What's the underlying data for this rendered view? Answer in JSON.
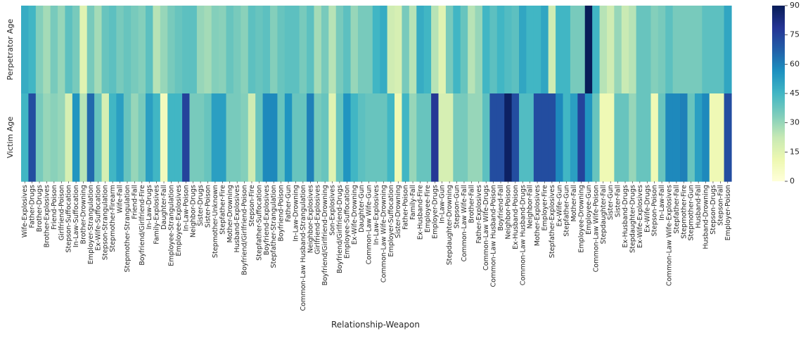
{
  "chart_data": {
    "type": "heatmap",
    "title": "",
    "xlabel": "Relationship-Weapon",
    "ylabel": "",
    "rows": [
      "Perpetrator Age",
      "Victim Age"
    ],
    "columns": [
      "Wife-Explosives",
      "Father-Drugs",
      "Brother-Drugs",
      "Brother-Explosives",
      "Friend-Poison",
      "Girlfriend-Poison",
      "Stepson-Suffocation",
      "In-Law-Suffocation",
      "Brother-Drowning",
      "Employer-Strangulation",
      "Ex-Wife-Suffocation",
      "Stepson-Strangulation",
      "Stepmother-Firearm",
      "Wife-Fall",
      "Stepmother-Strangulation",
      "Friend-Fall",
      "Boyfriend/Girlfriend-Fire",
      "In-Law-Drugs",
      "Family-Explosives",
      "Daughter-Fall",
      "Employee-Strangulation",
      "Employee-Explosives",
      "In-Law-Poison",
      "Neighbor-Drugs",
      "Sister-Drugs",
      "Sister-Poison",
      "Stepmother-Unknown",
      "Stepfather-Fire",
      "Mother-Drowning",
      "Husband-Explosives",
      "Boyfriend/Girlfriend-Poison",
      "Stepson-Fire",
      "Stepfather-Suffocation",
      "Boyfriend-Explosives",
      "Stepfather-Strangulation",
      "Boyfriend-Poison",
      "Father-Gun",
      "In-Law-Drowning",
      "Common-Law Husband-Strangulation",
      "Neighbor-Explosives",
      "Girlfriend-Explosives",
      "Boyfriend/Girlfriend-Drowning",
      "Son-Explosives",
      "Boyfriend/Girlfriend-Drugs",
      "Employee-Suffocation",
      "Ex-Wife-Drowning",
      "Daughter-Gun",
      "Common-Law Wife-Gun",
      "In-Law-Explosives",
      "Common-Law Wife-Drowning",
      "Employer-Suffocation",
      "Sister-Drowning",
      "Father-Poison",
      "Family-Fall",
      "Ex-Husband-Fire",
      "Employee-Fire",
      "Employer-Drugs",
      "In-Law-Gun",
      "Stepdaughter-Drowning",
      "Stepson-Gun",
      "Common-Law Wife-Fall",
      "Brother-Fall",
      "Father-Explosives",
      "Common-Law Wife-Drugs",
      "Common-Law Husband-Poison",
      "Boyfriend-Fall",
      "Neighbor-Poison",
      "Ex-Husband-Poison",
      "Common-Law Husband-Drugs",
      "Neighbor-Fall",
      "Mother-Explosives",
      "Employer-Fire",
      "Stepfather-Explosives",
      "Ex-Wife-Gun",
      "Stepfather-Gun",
      "Mother-Fall",
      "Employee-Drowning",
      "Employee-Gun",
      "Common-Law Wife-Poison",
      "Stepdaughter-Fall",
      "Sister-Gun",
      "Sister-Fall",
      "Ex-Husband-Drugs",
      "Stepdaughter-Drugs",
      "Ex-Wife-Explosives",
      "Ex-Wife-Drugs",
      "Stepson-Poison",
      "In-Law-Fall",
      "Common-Law Wife-Explosives",
      "Stepfather-Fall",
      "Stepmother-Fire",
      "Stepmother-Gun",
      "Husband-Fall",
      "Husband-Drowning",
      "Stepson-Drugs",
      "Stepson-Fall",
      "Employer-Poison"
    ],
    "values": [
      [
        48,
        45,
        33,
        28,
        35,
        30,
        40,
        35,
        15,
        35,
        28,
        38,
        40,
        35,
        38,
        35,
        33,
        40,
        25,
        30,
        35,
        38,
        40,
        40,
        30,
        28,
        33,
        32,
        38,
        35,
        32,
        40,
        38,
        40,
        33,
        38,
        40,
        40,
        35,
        40,
        28,
        35,
        25,
        35,
        40,
        30,
        35,
        35,
        45,
        48,
        20,
        18,
        35,
        25,
        48,
        45,
        25,
        15,
        35,
        45,
        38,
        25,
        30,
        45,
        40,
        45,
        42,
        40,
        50,
        45,
        45,
        50,
        20,
        45,
        45,
        35,
        35,
        90,
        45,
        25,
        20,
        30,
        22,
        25,
        38,
        38,
        33,
        35,
        40,
        35,
        35,
        35,
        35,
        40,
        40,
        40,
        50
      ],
      [
        45,
        72,
        35,
        30,
        32,
        30,
        18,
        55,
        25,
        65,
        38,
        18,
        45,
        52,
        38,
        30,
        35,
        52,
        45,
        8,
        45,
        45,
        75,
        35,
        35,
        38,
        52,
        52,
        35,
        35,
        33,
        20,
        38,
        58,
        58,
        38,
        55,
        38,
        38,
        60,
        35,
        38,
        15,
        38,
        55,
        45,
        40,
        38,
        38,
        38,
        45,
        10,
        45,
        30,
        38,
        38,
        78,
        18,
        18,
        35,
        35,
        30,
        30,
        40,
        72,
        72,
        88,
        72,
        42,
        42,
        72,
        72,
        72,
        58,
        45,
        52,
        75,
        55,
        38,
        10,
        10,
        38,
        38,
        30,
        38,
        38,
        10,
        38,
        58,
        58,
        60,
        38,
        52,
        58,
        10,
        10,
        72
      ]
    ],
    "colorbar": {
      "min": 0,
      "max": 90,
      "ticks": [
        0,
        15,
        30,
        45,
        60,
        75,
        90
      ]
    },
    "colormap": "YlGnBu"
  }
}
